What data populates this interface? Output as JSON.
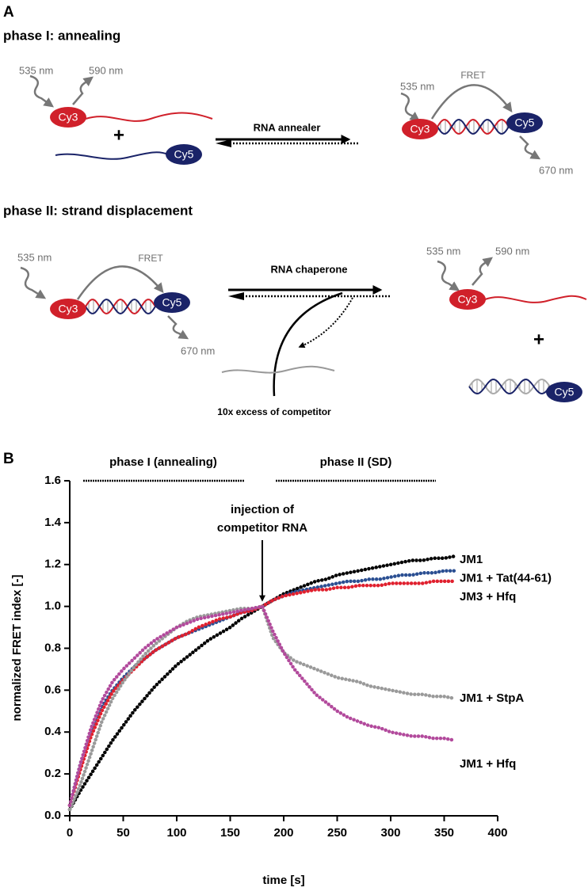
{
  "diagram": {
    "panel_label": "A",
    "phase1": {
      "title": "phase I: annealing",
      "excitation": "535 nm",
      "emission_cy3": "590 nm",
      "donor": "Cy3",
      "plus": "+",
      "acceptor": "Cy5",
      "arrow_label": "RNA annealer",
      "product_excitation": "535 nm",
      "fret": "FRET",
      "product_donor": "Cy3",
      "product_acceptor": "Cy5",
      "emission_cy5": "670 nm"
    },
    "phase2": {
      "title": "phase II: strand displacement",
      "excitation": "535 nm",
      "fret": "FRET",
      "donor": "Cy3",
      "acceptor": "Cy5",
      "emission_cy5": "670 nm",
      "arrow_label": "RNA chaperone",
      "competitor": "10x excess of competitor",
      "product_excitation": "535 nm",
      "product_emission": "590 nm",
      "product_donor": "Cy3",
      "plus": "+",
      "product_acceptor": "Cy5"
    }
  },
  "chart_data": {
    "type": "line",
    "panel_label": "B",
    "x_label": "time [s]",
    "y_label": "normalized FRET index [-]",
    "phase_labels": [
      "phase I (annealing)",
      "phase II (SD)"
    ],
    "annotation": [
      "injection of",
      "competitor RNA"
    ],
    "xlim": [
      0,
      400
    ],
    "xticks": [
      0,
      50,
      100,
      150,
      200,
      250,
      300,
      350,
      400
    ],
    "ylim": [
      0,
      1.6
    ],
    "yticks": [
      {
        "value": 0,
        "label": "0.0"
      },
      0.2,
      0.4,
      0.6,
      0.8,
      {
        "value": 1,
        "label": "1.0"
      },
      1.2,
      1.4,
      1.6
    ],
    "x": [
      0,
      10,
      20,
      30,
      40,
      50,
      60,
      70,
      80,
      90,
      100,
      110,
      120,
      130,
      140,
      150,
      160,
      170,
      180,
      190,
      200,
      210,
      220,
      230,
      240,
      250,
      260,
      270,
      280,
      290,
      300,
      310,
      320,
      330,
      340,
      350,
      360
    ],
    "series": [
      {
        "name": "JM1",
        "color": "#000000",
        "values": [
          0.03,
          0.12,
          0.2,
          0.28,
          0.36,
          0.43,
          0.5,
          0.56,
          0.62,
          0.67,
          0.72,
          0.76,
          0.8,
          0.84,
          0.87,
          0.9,
          0.94,
          0.97,
          1.0,
          1.03,
          1.06,
          1.08,
          1.1,
          1.12,
          1.13,
          1.15,
          1.16,
          1.17,
          1.18,
          1.19,
          1.2,
          1.21,
          1.22,
          1.22,
          1.23,
          1.23,
          1.24
        ]
      },
      {
        "name": "JM1 + Tat(44-61)",
        "color": "#2b4f92",
        "values": [
          0.05,
          0.25,
          0.4,
          0.52,
          0.6,
          0.66,
          0.71,
          0.75,
          0.79,
          0.82,
          0.85,
          0.87,
          0.89,
          0.91,
          0.93,
          0.95,
          0.97,
          0.98,
          1.0,
          1.03,
          1.05,
          1.07,
          1.08,
          1.09,
          1.1,
          1.11,
          1.12,
          1.12,
          1.13,
          1.13,
          1.14,
          1.15,
          1.15,
          1.16,
          1.16,
          1.17,
          1.17
        ]
      },
      {
        "name": "JM3 + Hfq",
        "color": "#e0202e",
        "values": [
          0.05,
          0.22,
          0.38,
          0.5,
          0.59,
          0.65,
          0.7,
          0.75,
          0.79,
          0.82,
          0.85,
          0.87,
          0.9,
          0.92,
          0.94,
          0.95,
          0.97,
          0.98,
          1.0,
          1.03,
          1.05,
          1.06,
          1.07,
          1.08,
          1.08,
          1.09,
          1.09,
          1.1,
          1.1,
          1.1,
          1.11,
          1.11,
          1.11,
          1.11,
          1.12,
          1.12,
          1.12
        ]
      },
      {
        "name": "JM1 + StpA",
        "color": "#9a9a9a",
        "values": [
          0.03,
          0.15,
          0.3,
          0.45,
          0.56,
          0.64,
          0.71,
          0.77,
          0.82,
          0.86,
          0.9,
          0.93,
          0.95,
          0.96,
          0.97,
          0.98,
          0.99,
          0.99,
          1.0,
          0.85,
          0.78,
          0.74,
          0.72,
          0.7,
          0.68,
          0.66,
          0.65,
          0.64,
          0.62,
          0.61,
          0.6,
          0.59,
          0.58,
          0.58,
          0.57,
          0.57,
          0.56
        ]
      },
      {
        "name": "JM1 + Hfq",
        "color": "#b24a9c",
        "values": [
          0.05,
          0.25,
          0.42,
          0.55,
          0.64,
          0.7,
          0.75,
          0.8,
          0.84,
          0.87,
          0.9,
          0.92,
          0.94,
          0.95,
          0.96,
          0.97,
          0.98,
          0.99,
          1.0,
          0.88,
          0.78,
          0.7,
          0.64,
          0.58,
          0.54,
          0.5,
          0.47,
          0.45,
          0.43,
          0.42,
          0.4,
          0.39,
          0.38,
          0.38,
          0.37,
          0.37,
          0.36
        ]
      }
    ]
  }
}
